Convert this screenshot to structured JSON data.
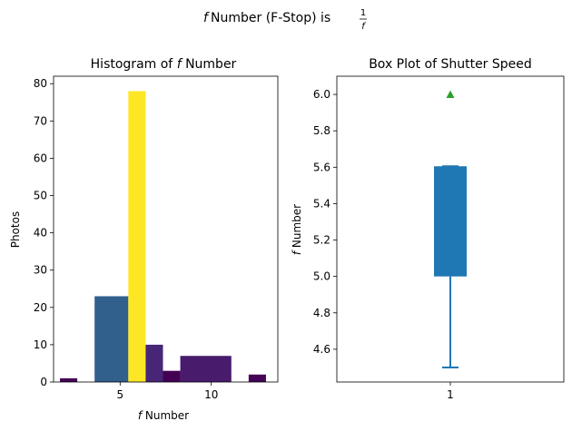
{
  "suptitle": {
    "prefix": "f",
    "text": " Number (F-Stop) is ",
    "frac_num": "1",
    "frac_den": "f"
  },
  "chart_data": [
    {
      "type": "bar",
      "title_prefix": "Histogram of ",
      "title_italic": "f",
      "title_suffix": " Number",
      "xlabel_italic": "f",
      "xlabel": " Number",
      "ylabel": "Photos",
      "xlim": [
        1.35,
        13.65
      ],
      "ylim": [
        0,
        82
      ],
      "xticks": [
        5,
        10
      ],
      "yticks": [
        0,
        10,
        20,
        30,
        40,
        50,
        60,
        70,
        80
      ],
      "bins": [
        {
          "x0": 1.7,
          "x1": 2.65,
          "value": 1,
          "color": "#440154"
        },
        {
          "x0": 3.6,
          "x1": 5.45,
          "value": 23,
          "color": "#31608d"
        },
        {
          "x0": 5.45,
          "x1": 6.4,
          "value": 78,
          "color": "#fde725"
        },
        {
          "x0": 6.4,
          "x1": 7.35,
          "value": 10,
          "color": "#482677"
        },
        {
          "x0": 7.35,
          "x1": 8.3,
          "value": 3,
          "color": "#440154"
        },
        {
          "x0": 8.3,
          "x1": 11.1,
          "value": 7,
          "color": "#481b6d"
        },
        {
          "x0": 12.05,
          "x1": 13.0,
          "value": 2,
          "color": "#450457"
        }
      ]
    },
    {
      "type": "box",
      "title": "Box Plot of Shutter Speed",
      "ylabel_italic": "f",
      "ylabel": " Number",
      "xticks": [
        "1"
      ],
      "ylim": [
        4.42,
        6.1
      ],
      "yticks": [
        "4.6",
        "4.8",
        "5.0",
        "5.2",
        "5.4",
        "5.6",
        "5.8",
        "6.0"
      ],
      "box": {
        "q1": 5.0,
        "q3": 5.6,
        "median": 5.6,
        "whisker_low": 4.5,
        "whisker_high": 5.6,
        "mean": 6.0,
        "color": "#1f77b4",
        "mean_color": "#2ca02c"
      }
    }
  ]
}
